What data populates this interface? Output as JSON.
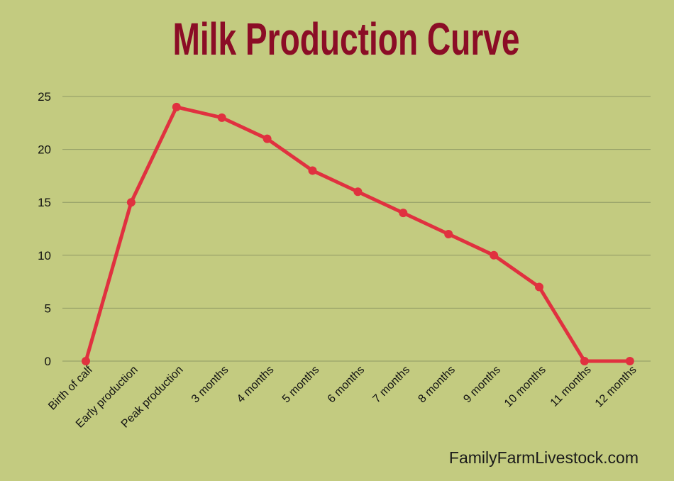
{
  "chart_data": {
    "type": "line",
    "title": "Milk Production Curve",
    "xlabel": "",
    "ylabel": "",
    "categories": [
      "Birth of calf",
      "Early production",
      "Peak production",
      "3  months",
      "4 months",
      "5 months",
      "6 months",
      "7 months",
      "8 months",
      "9 months",
      "10 months",
      "11 months",
      "12 months"
    ],
    "series": [
      {
        "values": [
          0,
          15,
          24,
          23,
          21,
          18,
          16,
          14,
          12,
          10,
          7,
          0,
          0
        ]
      }
    ],
    "ylim": [
      0,
      25
    ],
    "yticks": [
      "0",
      "5",
      "10",
      "15",
      "20",
      "25"
    ],
    "grid": true,
    "legend": "none",
    "colors": {
      "line": "#e0313f",
      "background": "#c3cb80",
      "title": "#8b0d26",
      "grid": "#8f9a65"
    }
  },
  "watermark": "FamilyFarmLivestock.com"
}
